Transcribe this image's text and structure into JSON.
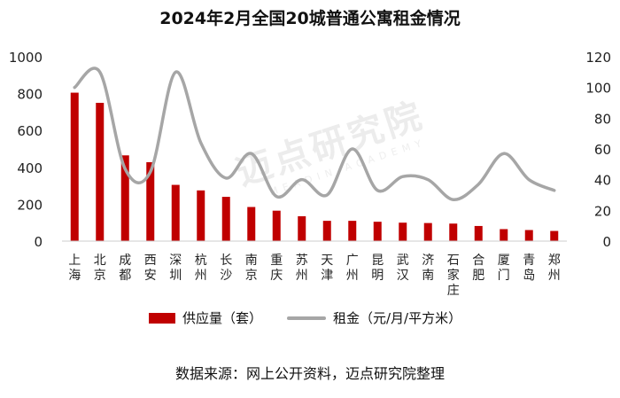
{
  "watermark": {
    "text": "迈点研究院",
    "sub": "MEADIN ACADEMY"
  },
  "chart_data": {
    "type": "bar",
    "title": "2024年2月全国20城普通公寓租金情况",
    "categories": [
      "上海",
      "北京",
      "成都",
      "西安",
      "深圳",
      "杭州",
      "长沙",
      "南京",
      "重庆",
      "苏州",
      "天津",
      "广州",
      "昆明",
      "武汉",
      "济南",
      "石家庄",
      "合肥",
      "厦门",
      "青岛",
      "郑州"
    ],
    "y_left": {
      "ylim": [
        0,
        1000
      ],
      "ticks": [
        0,
        200,
        400,
        600,
        800,
        1000
      ]
    },
    "y_right": {
      "ylim": [
        0,
        120
      ],
      "ticks": [
        0,
        20,
        40,
        60,
        80,
        100,
        120
      ]
    },
    "series": [
      {
        "name": "供应量（套）",
        "type": "bar",
        "axis": "left",
        "color": "#c00000",
        "values": [
          805,
          750,
          465,
          428,
          305,
          275,
          240,
          185,
          165,
          135,
          110,
          110,
          105,
          100,
          98,
          95,
          82,
          65,
          60,
          55
        ]
      },
      {
        "name": "租金（元/月/平方米）",
        "type": "line",
        "axis": "right",
        "color": "#a6a6a6",
        "values": [
          100,
          110,
          47,
          45,
          110,
          64,
          41,
          57,
          29,
          40,
          30,
          60,
          33,
          42,
          40,
          27,
          37,
          57,
          40,
          33
        ]
      }
    ],
    "legend_position": "bottom",
    "grid": false
  },
  "source": "数据来源：网上公开资料，迈点研究院整理"
}
